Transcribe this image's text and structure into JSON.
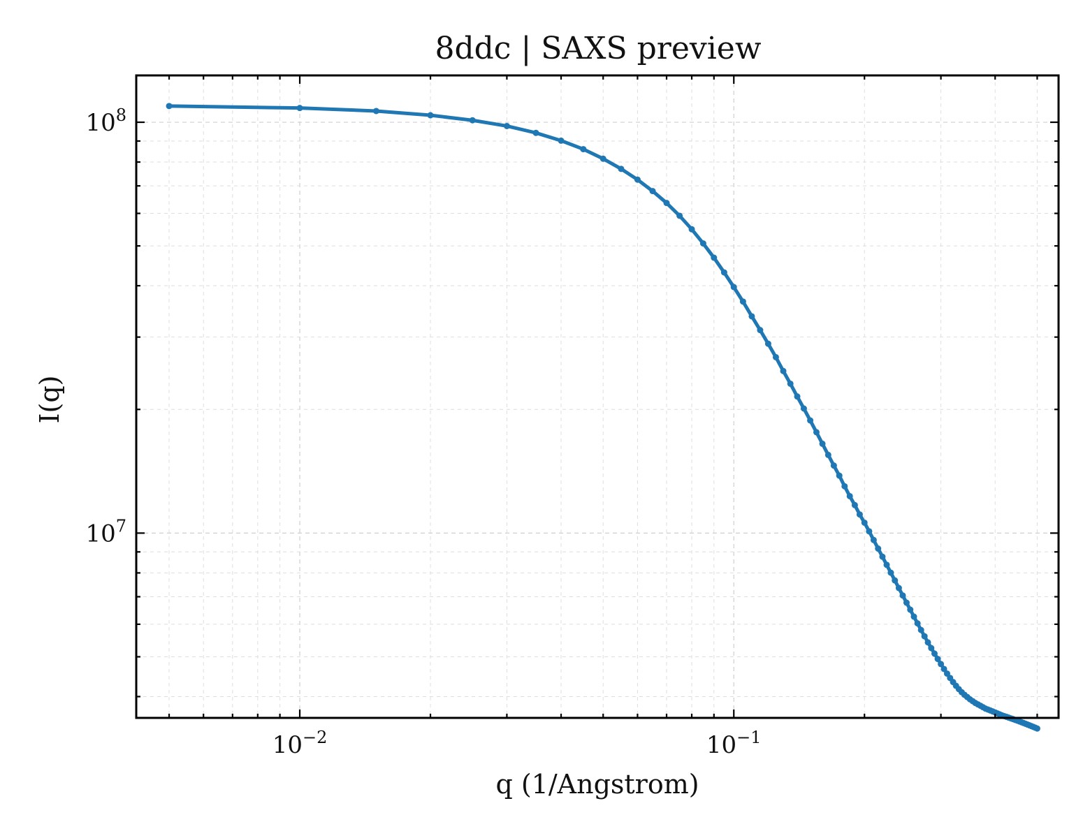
{
  "chart_data": {
    "type": "line",
    "title": "8ddc | SAXS preview",
    "xlabel": "q (1/Angstrom)",
    "ylabel": "I(q)",
    "xscale": "log",
    "yscale": "log",
    "xlim": [
      0.0042,
      0.56
    ],
    "ylim": [
      3550000,
      130000000
    ],
    "x_ticks": [
      {
        "value": 0.01,
        "base": "10",
        "exp": "−2"
      },
      {
        "value": 0.1,
        "base": "10",
        "exp": "−1"
      }
    ],
    "y_ticks": [
      {
        "value": 10000000,
        "base": "10",
        "exp": "7"
      },
      {
        "value": 100000000,
        "base": "10",
        "exp": "8"
      }
    ],
    "grid": true,
    "series": [
      {
        "color": "#1f77b4",
        "x": [
          0.005,
          0.01,
          0.015,
          0.02,
          0.025,
          0.03,
          0.035,
          0.04,
          0.045,
          0.05,
          0.055,
          0.06,
          0.065,
          0.07,
          0.075,
          0.08,
          0.085,
          0.09,
          0.095,
          0.1,
          0.105,
          0.11,
          0.115,
          0.12,
          0.125,
          0.13,
          0.135,
          0.14,
          0.145,
          0.15,
          0.155,
          0.16,
          0.165,
          0.17,
          0.175,
          0.18,
          0.185,
          0.19,
          0.195,
          0.2,
          0.205,
          0.21,
          0.215,
          0.22,
          0.225,
          0.23,
          0.235,
          0.24,
          0.245,
          0.25,
          0.255,
          0.26,
          0.265,
          0.27,
          0.275,
          0.28,
          0.285,
          0.29,
          0.295,
          0.3,
          0.305,
          0.31,
          0.315,
          0.32,
          0.325,
          0.33,
          0.335,
          0.34,
          0.345,
          0.35,
          0.355,
          0.36,
          0.365,
          0.37,
          0.375,
          0.38,
          0.385,
          0.39,
          0.395,
          0.4,
          0.405,
          0.41,
          0.415,
          0.42,
          0.425,
          0.43,
          0.435,
          0.44,
          0.445,
          0.45,
          0.455,
          0.46,
          0.465,
          0.47,
          0.475,
          0.48,
          0.485,
          0.49,
          0.495,
          0.5
        ],
        "y": [
          109500000,
          108300000,
          106500000,
          104000000,
          101100000,
          97900000,
          94200000,
          90200000,
          86000000,
          81500000,
          77000000,
          72500000,
          68000000,
          63600000,
          59200000,
          54900000,
          50700000,
          46800000,
          43100000,
          39700000,
          36600000,
          33700000,
          31200000,
          28900000,
          26800000,
          24800000,
          23100000,
          21500000,
          20100000,
          18800000,
          17600000,
          16500000,
          15500000,
          14600000,
          13800000,
          13000000,
          12300000,
          11700000,
          11100000,
          10600000,
          10100000,
          9620000,
          9170000,
          8760000,
          8370000,
          8010000,
          7670000,
          7350000,
          7050000,
          6770000,
          6510000,
          6260000,
          6030000,
          5810000,
          5610000,
          5420000,
          5250000,
          5090000,
          4940000,
          4800000,
          4670000,
          4550000,
          4440000,
          4340000,
          4250000,
          4170000,
          4100000,
          4040000,
          3990000,
          3940000,
          3900000,
          3860000,
          3830000,
          3800000,
          3770000,
          3740000,
          3720000,
          3700000,
          3680000,
          3660000,
          3640000,
          3620000,
          3600000,
          3585000,
          3570000,
          3555000,
          3540000,
          3525000,
          3510000,
          3495000,
          3480000,
          3465000,
          3450000,
          3435000,
          3420000,
          3405000,
          3390000,
          3375000,
          3360000,
          3345000
        ]
      }
    ]
  }
}
